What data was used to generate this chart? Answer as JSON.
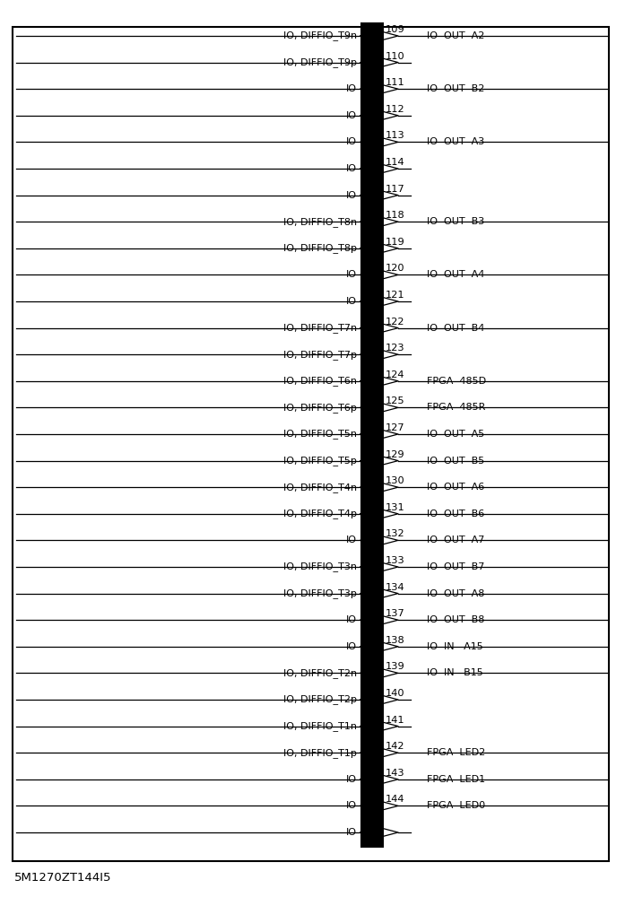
{
  "title": "5M1270ZT144I5",
  "background_color": "#ffffff",
  "pins": [
    {
      "pin": 109,
      "left_label": "IO, DIFFIO_T9n",
      "right_label": "IO  OUT  A2",
      "has_right": true
    },
    {
      "pin": 110,
      "left_label": "IO, DIFFIO_T9p",
      "right_label": "",
      "has_right": false
    },
    {
      "pin": 111,
      "left_label": "IO",
      "right_label": "IO  OUT  B2",
      "has_right": true
    },
    {
      "pin": 112,
      "left_label": "IO",
      "right_label": "",
      "has_right": false
    },
    {
      "pin": 113,
      "left_label": "IO",
      "right_label": "IO  OUT  A3",
      "has_right": true
    },
    {
      "pin": 114,
      "left_label": "IO",
      "right_label": "",
      "has_right": false
    },
    {
      "pin": 117,
      "left_label": "IO",
      "right_label": "",
      "has_right": false
    },
    {
      "pin": 118,
      "left_label": "IO, DIFFIO_T8n",
      "right_label": "IO  OUT  B3",
      "has_right": true
    },
    {
      "pin": 119,
      "left_label": "IO, DIFFIO_T8p",
      "right_label": "",
      "has_right": false
    },
    {
      "pin": 120,
      "left_label": "IO",
      "right_label": "IO  OUT  A4",
      "has_right": true
    },
    {
      "pin": 121,
      "left_label": "IO",
      "right_label": "",
      "has_right": false
    },
    {
      "pin": 122,
      "left_label": "IO, DIFFIO_T7n",
      "right_label": "IO  OUT  B4",
      "has_right": true
    },
    {
      "pin": 123,
      "left_label": "IO, DIFFIO_T7p",
      "right_label": "",
      "has_right": false
    },
    {
      "pin": 124,
      "left_label": "IO, DIFFIO_T6n",
      "right_label": "FPGA  485D",
      "has_right": true
    },
    {
      "pin": 125,
      "left_label": "IO, DIFFIO_T6p",
      "right_label": "FPGA  485R",
      "has_right": true
    },
    {
      "pin": 127,
      "left_label": "IO, DIFFIO_T5n",
      "right_label": "IO  OUT  A5",
      "has_right": true
    },
    {
      "pin": 129,
      "left_label": "IO, DIFFIO_T5p",
      "right_label": "IO  OUT  B5",
      "has_right": true
    },
    {
      "pin": 130,
      "left_label": "IO, DIFFIO_T4n",
      "right_label": "IO  OUT  A6",
      "has_right": true
    },
    {
      "pin": 131,
      "left_label": "IO, DIFFIO_T4p",
      "right_label": "IO  OUT  B6",
      "has_right": true
    },
    {
      "pin": 132,
      "left_label": "IO",
      "right_label": "IO  OUT  A7",
      "has_right": true
    },
    {
      "pin": 133,
      "left_label": "IO, DIFFIO_T3n",
      "right_label": "IO  OUT  B7",
      "has_right": true
    },
    {
      "pin": 134,
      "left_label": "IO, DIFFIO_T3p",
      "right_label": "IO  OUT  A8",
      "has_right": true
    },
    {
      "pin": 137,
      "left_label": "IO",
      "right_label": "IO  OUT  B8",
      "has_right": true
    },
    {
      "pin": 138,
      "left_label": "IO",
      "right_label": "IO  IN   A15",
      "has_right": true
    },
    {
      "pin": 139,
      "left_label": "IO, DIFFIO_T2n",
      "right_label": "IO  IN   B15",
      "has_right": true
    },
    {
      "pin": 140,
      "left_label": "IO, DIFFIO_T2p",
      "right_label": "",
      "has_right": false
    },
    {
      "pin": 141,
      "left_label": "IO, DIFFIO_T1n",
      "right_label": "",
      "has_right": false
    },
    {
      "pin": 142,
      "left_label": "IO, DIFFIO_T1p",
      "right_label": "FPGA  LED2",
      "has_right": true
    },
    {
      "pin": 143,
      "left_label": "IO",
      "right_label": "FPGA  LED1",
      "has_right": true
    },
    {
      "pin": 144,
      "left_label": "IO",
      "right_label": "FPGA  LED0",
      "has_right": true
    },
    {
      "pin": -1,
      "left_label": "IO",
      "right_label": "",
      "has_right": false
    }
  ]
}
